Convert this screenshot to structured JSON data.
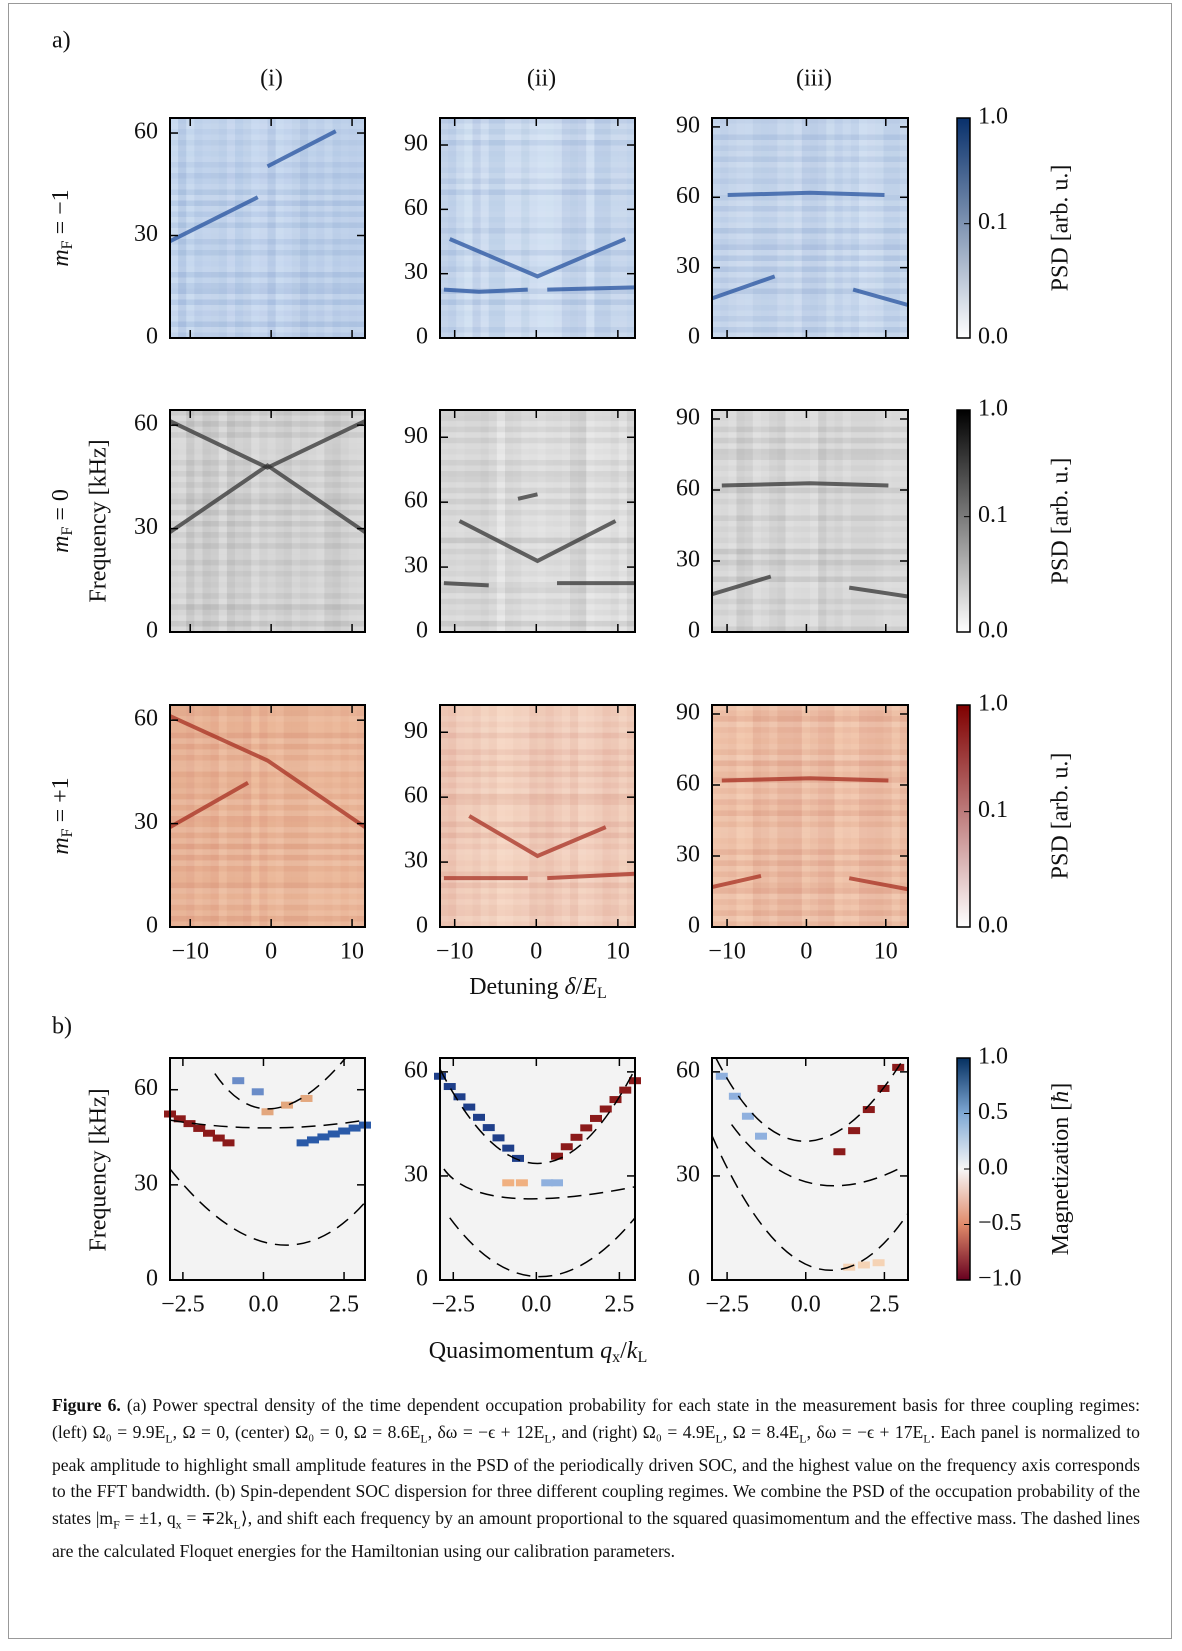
{
  "figure": {
    "label_a": "a)",
    "label_b": "b)",
    "columns": [
      "(i)",
      "(ii)",
      "(iii)"
    ],
    "rows": [
      [
        {
          "i": "m"
        },
        {
          "sub": "F"
        },
        {
          "t": " = −1"
        }
      ],
      [
        {
          "i": "m"
        },
        {
          "sub": "F"
        },
        {
          "t": " = 0"
        }
      ],
      [
        {
          "i": "m"
        },
        {
          "sub": "F"
        },
        {
          "t": " = +1"
        }
      ]
    ],
    "a_ylabel": "Frequency [kHz]",
    "a_xlabel": [
      {
        "t": "Detuning "
      },
      {
        "i": "δ"
      },
      {
        "t": "/"
      },
      {
        "i": "E"
      },
      {
        "sub": "L"
      }
    ],
    "a_panels": [
      {
        "xlim": [
          -12.5,
          11.6
        ],
        "xticks": [
          {
            "value": -10,
            "label": "−10"
          },
          0,
          10
        ],
        "ylim": [
          0,
          64.4
        ],
        "yticks": [
          0,
          30,
          60
        ]
      },
      {
        "xlim": [
          -11.8,
          12.1
        ],
        "xticks": [
          {
            "value": -10,
            "label": "−10"
          },
          0,
          10
        ],
        "ylim": [
          0,
          102.6
        ],
        "yticks": [
          0,
          30,
          60,
          90
        ]
      },
      {
        "xlim": [
          -11.9,
          12.8
        ],
        "xticks": [
          {
            "value": -10,
            "label": "−10"
          },
          0,
          10
        ],
        "ylim": [
          0,
          93.8
        ],
        "yticks": [
          0,
          30,
          60,
          90
        ]
      }
    ],
    "a_colorbars": [
      {
        "label": "PSD [arb. u.]",
        "color": "#08306b"
      },
      {
        "label": "PSD [arb. u.]",
        "color": "#000000"
      },
      {
        "label": "PSD [arb. u.]",
        "color": "#7f0000"
      }
    ],
    "a_cbar_scale": "symlog",
    "a_cbar_ticks": [
      {
        "value": 1,
        "label": "1.0"
      },
      0.1,
      {
        "value": 0,
        "label": "0.0"
      }
    ],
    "b_ylabel": "Frequency   [kHz]",
    "b_xlabel": [
      {
        "t": "Quasimomentum  "
      },
      {
        "i": "q"
      },
      {
        "sub": "x"
      },
      {
        "t": "/"
      },
      {
        "i": "k"
      },
      {
        "sub": "L"
      }
    ],
    "b_panels": [
      {
        "xlim": [
          -2.9,
          3.15
        ],
        "xticks": [
          {
            "value": -2.5,
            "label": "−2.5"
          },
          {
            "value": 0,
            "label": "0.0"
          },
          2.5
        ],
        "ylim": [
          0,
          70
        ],
        "yticks": [
          0,
          30,
          60
        ]
      },
      {
        "xlim": [
          -2.9,
          2.97
        ],
        "xticks": [
          {
            "value": -2.5,
            "label": "−2.5"
          },
          {
            "value": 0,
            "label": "0.0"
          },
          2.5
        ],
        "ylim": [
          0,
          64
        ],
        "yticks": [
          0,
          30,
          60
        ]
      },
      {
        "xlim": [
          -2.98,
          3.25
        ],
        "xticks": [
          {
            "value": -2.5,
            "label": "−2.5"
          },
          {
            "value": 0,
            "label": "0.0"
          },
          2.5
        ],
        "ylim": [
          0,
          64
        ],
        "yticks": [
          0,
          30,
          60
        ]
      }
    ],
    "b_cbar": {
      "label": [
        {
          "t": "Magnetization ["
        },
        {
          "i": "ħ"
        },
        {
          "t": "]"
        }
      ],
      "ylim": [
        -1,
        1
      ],
      "ticks": [
        {
          "value": 1,
          "label": "1.0"
        },
        0.5,
        {
          "value": 0,
          "label": "0.0"
        },
        {
          "value": -0.5,
          "label": "−0.5"
        },
        {
          "value": -1,
          "label": "−1.0"
        }
      ]
    }
  },
  "caption": {
    "title": "Figure 6.",
    "segments": [
      " (a) Power spectral density of the time dependent occupation probability for each state in the measurement basis for three coupling regimes: (left) Ω₀ = 9.9E",
      {
        "sub": "L"
      },
      ", Ω = 0, (center) Ω₀ = 0, Ω = 8.6E",
      {
        "sub": "L"
      },
      ", δω = −ϵ + 12E",
      {
        "sub": "L"
      },
      ", and (right) Ω₀ = 4.9E",
      {
        "sub": "L"
      },
      ", Ω = 8.4E",
      {
        "sub": "L"
      },
      ", δω = −ϵ + 17E",
      {
        "sub": "L"
      },
      ". Each panel is normalized to peak amplitude to highlight small amplitude features in the PSD of the periodically driven SOC, and the highest value on the frequency axis corresponds to the FFT bandwidth. (b) Spin-dependent SOC dispersion for three different coupling regimes. We combine the PSD of the occupation probability of the states |m",
      {
        "sub": "F"
      },
      " = ±1, q",
      {
        "sub": "x"
      },
      " = ∓2k",
      {
        "sub": "L"
      },
      "⟩, and shift each frequency by an amount proportional to the squared quasimomentum and the effective mass. The dashed lines are the calculated Floquet energies for the Hamiltonian using our calibration parameters."
    ]
  }
}
